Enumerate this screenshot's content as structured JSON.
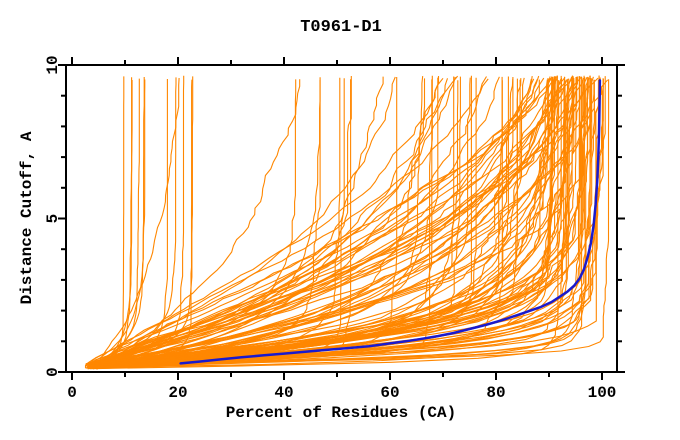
{
  "chart_data": {
    "type": "line",
    "title": "T0961-D1",
    "xlabel": "Percent of Residues (CA)",
    "ylabel": "Distance Cutoff, A",
    "xlim": [
      0,
      100
    ],
    "ylim": [
      0,
      10
    ],
    "grid": false,
    "legend": "none",
    "x_major_ticks": [
      0,
      20,
      40,
      60,
      80,
      100
    ],
    "x_major_tick_labels": [
      "0",
      "20",
      "40",
      "60",
      "80",
      "100"
    ],
    "x_minor_ticks": [
      10,
      30,
      50,
      70,
      90
    ],
    "y_major_ticks": [
      0,
      5,
      10
    ],
    "y_major_tick_labels": [
      "0",
      "5",
      "10"
    ],
    "y_minor_ticks": [
      1,
      2,
      3,
      4,
      6,
      7,
      8,
      9
    ],
    "colors": {
      "background": "#ffffff",
      "axis": "#000000",
      "ensemble": "#ff8700",
      "highlight": "#1a1acd"
    },
    "series": [
      {
        "name": "model-ensemble",
        "style": "thin-orange-lines",
        "color": "#ff8700",
        "count": 135,
        "seed": 11,
        "generator": {
          "x_start": [
            2.5,
            5.5
          ],
          "y_start": [
            0.1,
            0.3
          ],
          "y_end": [
            9.5,
            9.66
          ],
          "xe_buckets": [
            {
              "w": 7,
              "range": [
                8.5,
                15
              ]
            },
            {
              "w": 8,
              "range": [
                17,
                40
              ]
            },
            {
              "w": 13,
              "range": [
                42,
                62
              ]
            },
            {
              "w": 22,
              "range": [
                64,
                88
              ]
            },
            {
              "w": 72,
              "range": [
                88.5,
                100.8
              ]
            }
          ],
          "tau_fast": [
            0.18,
            1.5
          ],
          "tau_slow": [
            2.2,
            6.5
          ],
          "frac_slow": 0.32,
          "p_range": [
            0.8,
            1.35
          ],
          "wobble_amp": [
            0.5,
            2.0
          ]
        }
      },
      {
        "name": "highlighted-model",
        "style": "thick-blue-line",
        "color": "#1a1acd",
        "points": [
          [
            20.5,
            0.28
          ],
          [
            24,
            0.34
          ],
          [
            28,
            0.41
          ],
          [
            32,
            0.48
          ],
          [
            36,
            0.54
          ],
          [
            40,
            0.6
          ],
          [
            44,
            0.66
          ],
          [
            48,
            0.72
          ],
          [
            52,
            0.78
          ],
          [
            56,
            0.84
          ],
          [
            60,
            0.93
          ],
          [
            63,
            1.0
          ],
          [
            66,
            1.08
          ],
          [
            69,
            1.17
          ],
          [
            72,
            1.27
          ],
          [
            75,
            1.4
          ],
          [
            78,
            1.53
          ],
          [
            81,
            1.68
          ],
          [
            84,
            1.85
          ],
          [
            86.5,
            2.0
          ],
          [
            88.5,
            2.12
          ],
          [
            90.5,
            2.28
          ],
          [
            92,
            2.45
          ],
          [
            93.5,
            2.62
          ],
          [
            94.8,
            2.82
          ],
          [
            95.8,
            3.05
          ],
          [
            96.6,
            3.35
          ],
          [
            97.3,
            3.75
          ],
          [
            97.9,
            4.2
          ],
          [
            98.4,
            4.75
          ],
          [
            98.8,
            5.45
          ],
          [
            99.1,
            6.2
          ],
          [
            99.3,
            7.0
          ],
          [
            99.45,
            7.9
          ],
          [
            99.55,
            8.8
          ],
          [
            99.6,
            9.5
          ]
        ]
      }
    ]
  }
}
